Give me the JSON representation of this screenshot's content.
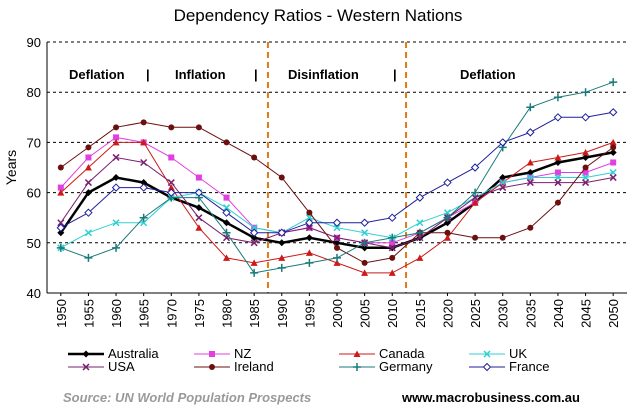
{
  "chart_data": {
    "type": "line",
    "title": "Dependency Ratios - Western Nations",
    "xlabel": "",
    "ylabel": "Years",
    "ylim": [
      40,
      90
    ],
    "yticks": [
      40,
      50,
      60,
      70,
      80,
      90
    ],
    "grid": "horizontal dashed",
    "categories": [
      "1950",
      "1955",
      "1960",
      "1965",
      "1970",
      "1975",
      "1980",
      "1985",
      "1990",
      "1995",
      "2000",
      "2005",
      "2010",
      "2015",
      "2020",
      "2025",
      "2030",
      "2035",
      "2040",
      "2045",
      "2050"
    ],
    "series": [
      {
        "name": "Australia",
        "color": "#000000",
        "marker": "diamond",
        "values": [
          52,
          60,
          63,
          62,
          59,
          57,
          54,
          51,
          50,
          51,
          50,
          49,
          49,
          51,
          54,
          58,
          63,
          64,
          66,
          67,
          68
        ]
      },
      {
        "name": "NZ",
        "color": "#e040e0",
        "marker": "square",
        "values": [
          61,
          67,
          71,
          70,
          67,
          63,
          59,
          53,
          52,
          53,
          51,
          50,
          50,
          52,
          55,
          58,
          62,
          63,
          64,
          64,
          66
        ]
      },
      {
        "name": "Canada",
        "color": "#cc1a1a",
        "marker": "triangle",
        "values": [
          60,
          65,
          70,
          70,
          61,
          53,
          47,
          46,
          47,
          48,
          46,
          44,
          44,
          47,
          51,
          58,
          62,
          66,
          67,
          68,
          70
        ]
      },
      {
        "name": "UK",
        "color": "#2fd0d0",
        "marker": "x",
        "values": [
          49,
          52,
          54,
          54,
          59,
          60,
          57,
          53,
          52,
          55,
          53,
          52,
          51,
          54,
          56,
          59,
          62,
          63,
          63,
          63,
          64
        ]
      },
      {
        "name": "USA",
        "color": "#7a1f6e",
        "marker": "x",
        "values": [
          54,
          62,
          67,
          66,
          62,
          55,
          51,
          50,
          52,
          53,
          51,
          50,
          49,
          51,
          55,
          59,
          61,
          62,
          62,
          62,
          63
        ]
      },
      {
        "name": "Ireland",
        "color": "#6b0f0f",
        "marker": "circle",
        "values": [
          65,
          69,
          73,
          74,
          73,
          73,
          70,
          67,
          63,
          56,
          49,
          46,
          47,
          52,
          52,
          51,
          51,
          53,
          58,
          65,
          69
        ]
      },
      {
        "name": "Germany",
        "color": "#1a7a7a",
        "marker": "plus",
        "values": [
          49,
          47,
          49,
          55,
          59,
          59,
          52,
          44,
          45,
          46,
          47,
          50,
          51,
          52,
          55,
          60,
          69,
          77,
          79,
          80,
          82
        ]
      },
      {
        "name": "France",
        "color": "#1f1f9e",
        "marker": "diamond-open",
        "values": [
          53,
          56,
          61,
          61,
          60,
          60,
          56,
          52,
          52,
          54,
          54,
          54,
          55,
          59,
          62,
          65,
          70,
          72,
          75,
          75,
          76
        ]
      }
    ],
    "eras": [
      "Deflation",
      "|",
      "Inflation",
      "|",
      "Disinflation",
      "|",
      "Deflation"
    ],
    "era_boundaries": [
      "1985",
      "2010"
    ],
    "source": "Source: UN World Population Prospects",
    "website": "www.macrobusiness.com.au"
  }
}
